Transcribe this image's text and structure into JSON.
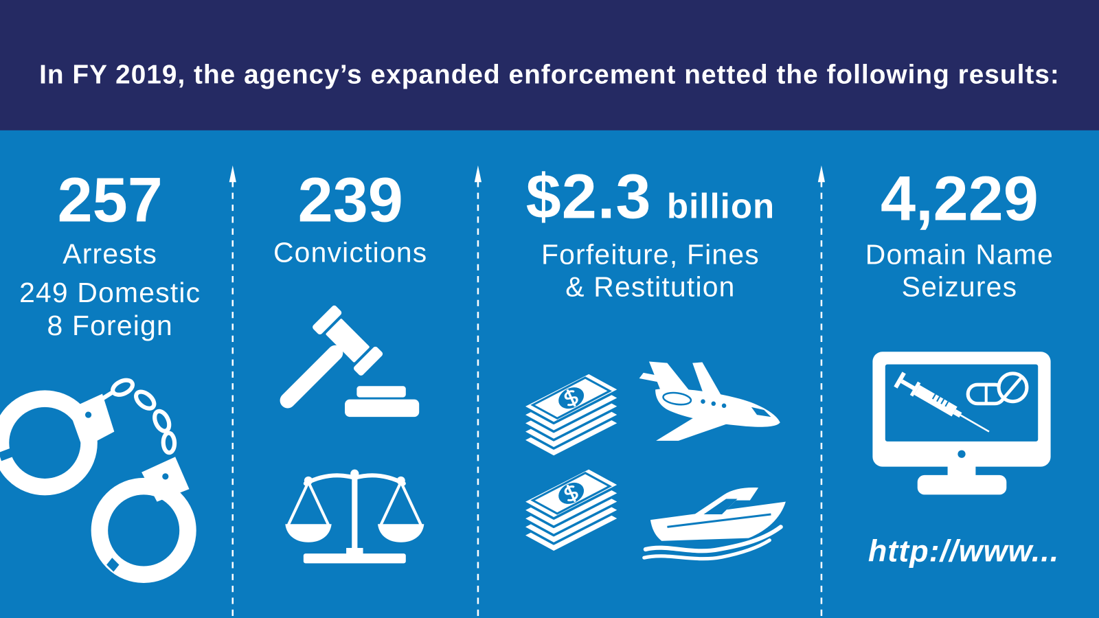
{
  "header": {
    "title": "In FY 2019, the agency’s expanded enforcement netted the following results:"
  },
  "colors": {
    "header_background": "#252a63",
    "body_background": "#0a7bbf",
    "foreground": "#ffffff"
  },
  "stats": [
    {
      "number": "257",
      "label_lines": [
        "Arrests"
      ],
      "detail_lines": [
        "249 Domestic",
        "8 Foreign"
      ],
      "icons": [
        "handcuffs-icon"
      ]
    },
    {
      "number": "239",
      "label_lines": [
        "Convictions"
      ],
      "icons": [
        "gavel-icon",
        "scales-of-justice-icon"
      ]
    },
    {
      "number": "$2.3",
      "unit": "billion",
      "label_lines": [
        "Forfeiture, Fines",
        "& Restitution"
      ],
      "icons": [
        "money-stack-icon",
        "private-jet-icon",
        "money-stack-icon",
        "speedboat-icon"
      ]
    },
    {
      "number": "4,229",
      "label_lines": [
        "Domain Name",
        "Seizures"
      ],
      "icons": [
        "computer-monitor-icon",
        "syringe-icon",
        "capsule-pill-icon",
        "tablet-pill-icon"
      ],
      "caption": "http://www..."
    }
  ],
  "divider_icon": "arrow-up-icon"
}
